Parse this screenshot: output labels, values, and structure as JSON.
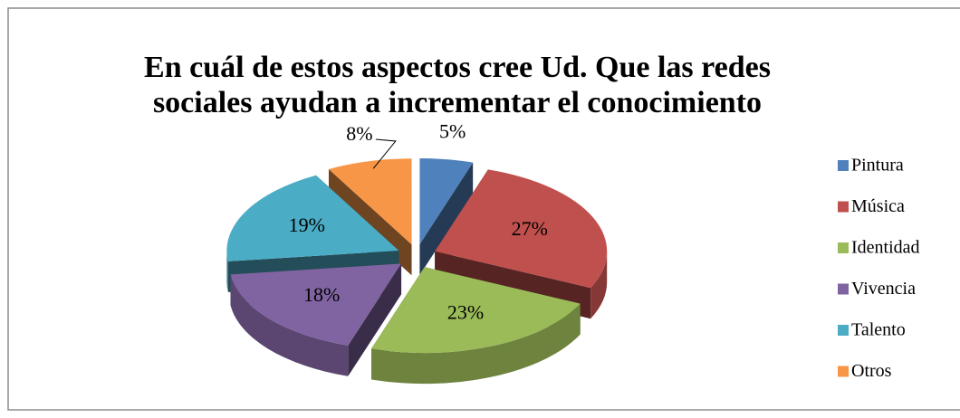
{
  "chart_data": {
    "type": "pie3d",
    "title": "En cuál de estos aspectos cree Ud. Que las redes\nsociales ayudan a incrementar el conocimiento",
    "categories": [
      "Pintura",
      "Música",
      "Identidad",
      "Vivencia",
      "Talento",
      "Otros"
    ],
    "values": [
      5,
      27,
      23,
      18,
      19,
      8
    ],
    "value_labels": [
      "5%",
      "27%",
      "23%",
      "18%",
      "19%",
      "8%"
    ],
    "colors": [
      "#4f81bd",
      "#c0504d",
      "#9bbb59",
      "#8064a2",
      "#4bacc6",
      "#f79646"
    ],
    "legend": "right"
  }
}
